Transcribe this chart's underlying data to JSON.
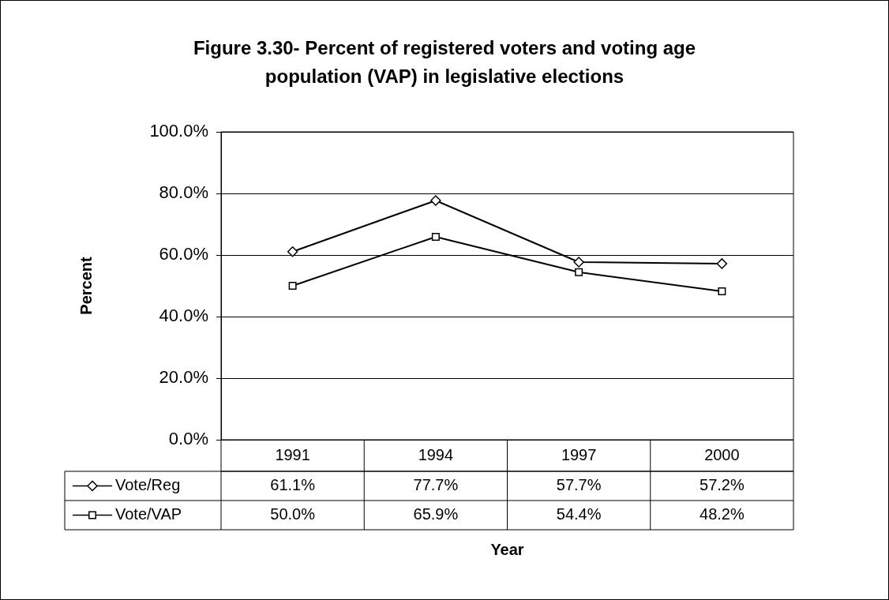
{
  "chart_data": {
    "type": "line",
    "title": "Figure 3.30- Percent of registered voters and voting age population (VAP) in legislative elections",
    "xlabel": "Year",
    "ylabel": "Percent",
    "categories": [
      "1991",
      "1994",
      "1997",
      "2000"
    ],
    "series": [
      {
        "name": "Vote/Reg",
        "color": "#000000",
        "marker": "diamond",
        "values": [
          61.1,
          77.7,
          57.7,
          57.2
        ],
        "value_labels": [
          "61.1%",
          "77.7%",
          "57.7%",
          "57.2%"
        ]
      },
      {
        "name": "Vote/VAP",
        "color": "#000000",
        "marker": "square",
        "values": [
          50.0,
          65.9,
          54.4,
          48.2
        ],
        "value_labels": [
          "50.0%",
          "65.9%",
          "54.4%",
          "48.2%"
        ]
      }
    ],
    "ylim": [
      0,
      100
    ],
    "yticks": [
      {
        "value": 0,
        "label": "0.0%"
      },
      {
        "value": 20,
        "label": "20.0%"
      },
      {
        "value": 40,
        "label": "40.0%"
      },
      {
        "value": 60,
        "label": "60.0%"
      },
      {
        "value": 80,
        "label": "80.0%"
      },
      {
        "value": 100,
        "label": "100.0%"
      }
    ],
    "grid": "y",
    "legend": "bottom left",
    "line_style": "solid"
  }
}
